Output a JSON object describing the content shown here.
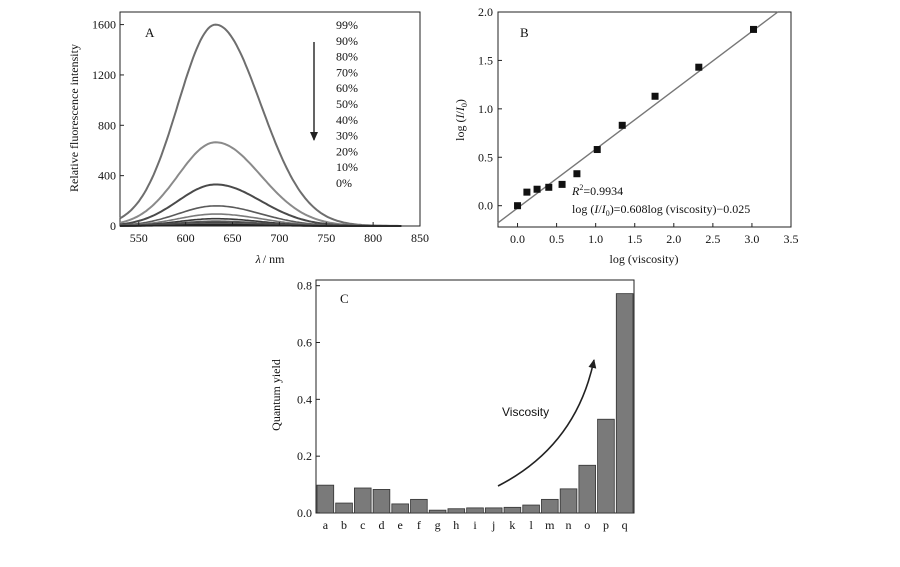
{
  "chart_data": [
    {
      "panel_label": "A",
      "type": "line",
      "xlabel_symbol": "λ",
      "xlabel_unit": "/ nm",
      "ylabel": "Relative fluorescence intensity",
      "xlim": [
        530,
        850
      ],
      "ylim": [
        0,
        1700
      ],
      "x_ticks": [
        550,
        600,
        650,
        700,
        750,
        800,
        850
      ],
      "y_ticks": [
        0,
        400,
        800,
        1200,
        1600
      ],
      "peak_x": 632,
      "legend": [
        "99%",
        "90%",
        "80%",
        "70%",
        "60%",
        "50%",
        "40%",
        "30%",
        "20%",
        "10%",
        "0%"
      ],
      "series_peaks": [
        1600,
        665,
        330,
        160,
        95,
        58,
        38,
        26,
        18,
        12,
        8
      ],
      "colors": [
        "#6e6e6e",
        "#8a8a8a",
        "#4a4a4a",
        "#5a5a5a",
        "#7a7a7a",
        "#3a3a3a",
        "#555555",
        "#444444",
        "#666666",
        "#333333",
        "#222222"
      ]
    },
    {
      "panel_label": "B",
      "type": "scatter",
      "xlabel": "log (viscosity)",
      "ylabel_prefix": "log (",
      "ylabel_I": "I",
      "ylabel_slash": "/",
      "ylabel_I0": "I",
      "ylabel_sub": "0",
      "ylabel_suffix": ")",
      "xlim": [
        -0.25,
        3.5
      ],
      "ylim": [
        -0.22,
        2.0
      ],
      "x_ticks": [
        "0.0",
        "0.5",
        "1.0",
        "1.5",
        "2.0",
        "2.5",
        "3.0",
        "3.5"
      ],
      "y_ticks": [
        "0.0",
        "0.5",
        "1.0",
        "1.5",
        "2.0"
      ],
      "points": [
        [
          0.0,
          0.0
        ],
        [
          0.12,
          0.14
        ],
        [
          0.25,
          0.17
        ],
        [
          0.4,
          0.19
        ],
        [
          0.57,
          0.22
        ],
        [
          0.76,
          0.33
        ],
        [
          1.02,
          0.58
        ],
        [
          1.34,
          0.83
        ],
        [
          1.76,
          1.13
        ],
        [
          2.32,
          1.43
        ],
        [
          3.02,
          1.82
        ]
      ],
      "fit": {
        "slope": 0.608,
        "intercept": -0.025
      },
      "r2_label": "R",
      "r2_text": "=0.9934",
      "equation": "log (I/I0)=0.608log (viscosity)−0.025"
    },
    {
      "panel_label": "C",
      "type": "bar",
      "ylabel": "Quantum yield",
      "ylim": [
        0,
        0.82
      ],
      "y_ticks": [
        "0.0",
        "0.2",
        "0.4",
        "0.6",
        "0.8"
      ],
      "categories": [
        "a",
        "b",
        "c",
        "d",
        "e",
        "f",
        "g",
        "h",
        "i",
        "j",
        "k",
        "l",
        "m",
        "n",
        "o",
        "p",
        "q"
      ],
      "values": [
        0.098,
        0.035,
        0.088,
        0.083,
        0.032,
        0.048,
        0.01,
        0.015,
        0.018,
        0.018,
        0.02,
        0.028,
        0.048,
        0.085,
        0.168,
        0.33,
        0.772
      ],
      "annotation": "Viscosity",
      "bar_color": "#7a7a7a"
    }
  ]
}
